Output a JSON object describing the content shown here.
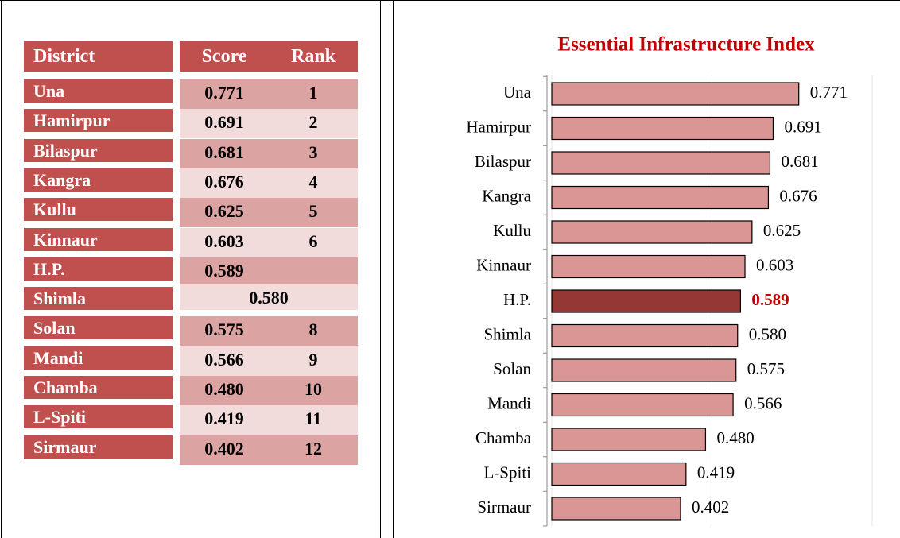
{
  "table": {
    "header": [
      "District",
      "Score",
      "Rank"
    ],
    "rows": [
      [
        "Una",
        "0.771",
        "1"
      ],
      [
        "Hamirpur",
        "0.691",
        "2"
      ],
      [
        "Bilaspur",
        "0.681",
        "3"
      ],
      [
        "Kangra",
        "0.676",
        "4"
      ],
      [
        "Kullu",
        "0.625",
        "5"
      ],
      [
        "Kinnaur",
        "0.603",
        "6"
      ],
      [
        "H.P.",
        "0.589"
      ],
      [
        "Shimla",
        "0.580"
      ],
      [
        "Solan",
        "0.575",
        "8"
      ],
      [
        "Mandi",
        "0.566",
        "9"
      ],
      [
        "Chamba",
        "0.480",
        "10"
      ],
      [
        "L-Spiti",
        "0.419",
        "11"
      ],
      [
        "Sirmaur",
        "0.402",
        "12"
      ]
    ]
  },
  "chart_data": {
    "type": "hbar",
    "title": "Essential Infrastructure Index",
    "categories": [
      "Una",
      "Hamirpur",
      "Bilaspur",
      "Kangra",
      "Kullu",
      "Kinnaur",
      "H.P.",
      "Shimla",
      "Solan",
      "Mandi",
      "Chamba",
      "L-Spiti",
      "Sirmaur"
    ],
    "values": [
      0.771,
      0.691,
      0.681,
      0.676,
      0.625,
      0.603,
      0.589,
      0.58,
      0.575,
      0.566,
      0.48,
      0.419,
      0.402
    ],
    "value_labels": [
      "0.771",
      "0.691",
      "0.681",
      "0.676",
      "0.625",
      "0.603",
      "0.589",
      "0.580",
      "0.575",
      "0.566",
      "0.480",
      "0.419",
      "0.402"
    ],
    "colors": [
      "#d99694",
      "#d99694",
      "#d99694",
      "#d99694",
      "#d99694",
      "#d99694",
      "#953735",
      "#d99694",
      "#d99694",
      "#d99694",
      "#d99694",
      "#d99694",
      "#d99694"
    ],
    "value_label_colors": [
      "#000",
      "#000",
      "#000",
      "#000",
      "#000",
      "#000",
      "#c00000",
      "#000",
      "#000",
      "#000",
      "#000",
      "#000",
      "#000"
    ],
    "xlim": [
      0,
      1
    ],
    "xticks": [
      0,
      0.5,
      1
    ],
    "grid": true
  }
}
